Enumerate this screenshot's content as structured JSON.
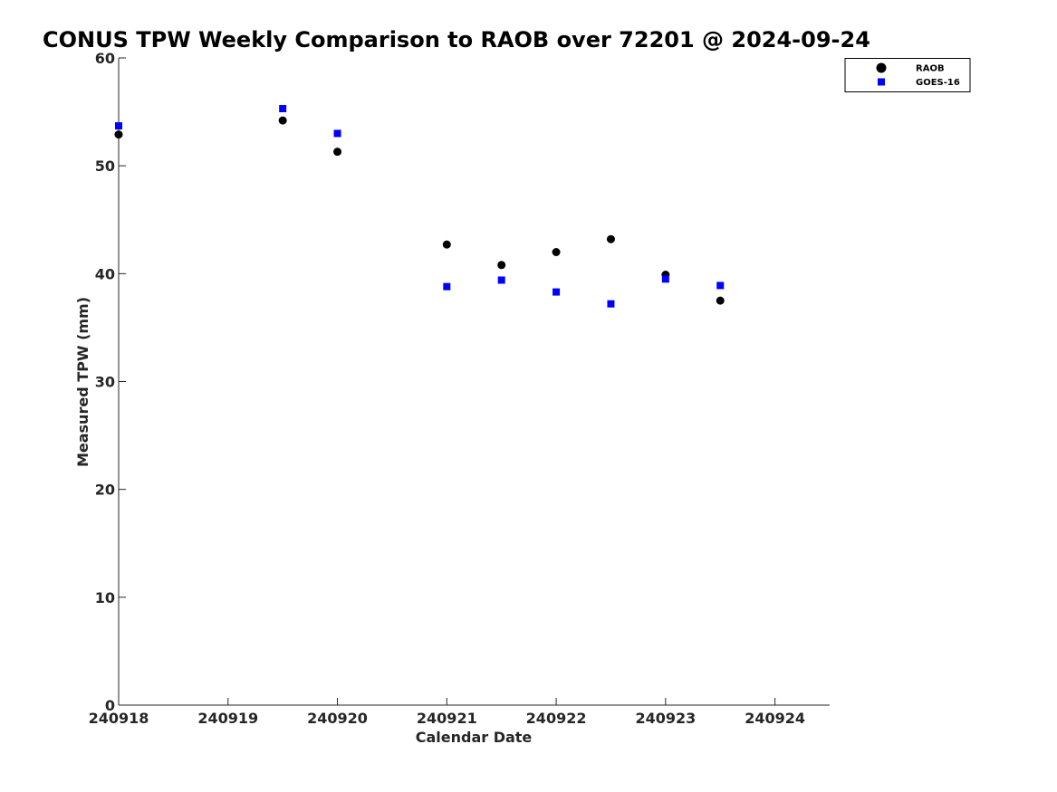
{
  "chart_data": {
    "type": "scatter",
    "title": "CONUS TPW Weekly Comparison to RAOB over 72201 @ 2024-09-24",
    "xlabel": "Calendar Date",
    "ylabel": "Measured TPW (mm)",
    "xlim": [
      240918,
      240924.5
    ],
    "ylim": [
      0,
      60
    ],
    "x_ticks": [
      240918,
      240919,
      240920,
      240921,
      240922,
      240923,
      240924
    ],
    "x_tick_labels": [
      "240918",
      "240919",
      "240920",
      "240921",
      "240922",
      "240923",
      "240924"
    ],
    "y_ticks": [
      0,
      10,
      20,
      30,
      40,
      50,
      60
    ],
    "y_tick_labels": [
      "0",
      "10",
      "20",
      "30",
      "40",
      "50",
      "60"
    ],
    "grid": false,
    "legend_position": "top-right",
    "series": [
      {
        "name": "RAOB",
        "marker": "circle",
        "color": "#000000",
        "x": [
          240918,
          240919.5,
          240920,
          240921,
          240921.5,
          240922,
          240922.5,
          240923,
          240923.5
        ],
        "y": [
          52.9,
          54.2,
          51.3,
          42.7,
          40.8,
          42.0,
          43.2,
          39.9,
          37.5
        ]
      },
      {
        "name": "GOES-16",
        "marker": "square",
        "color": "#0000ff",
        "x": [
          240918,
          240919.5,
          240920,
          240921,
          240921.5,
          240922,
          240922.5,
          240923,
          240923.5
        ],
        "y": [
          53.7,
          55.3,
          53.0,
          38.8,
          39.4,
          38.3,
          37.2,
          39.5,
          38.9
        ]
      }
    ]
  }
}
